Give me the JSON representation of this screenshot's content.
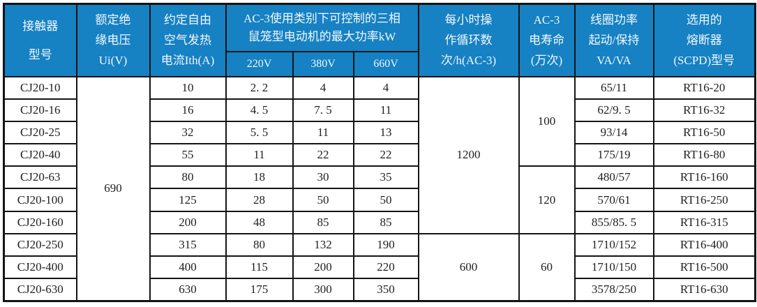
{
  "colors": {
    "header_bg": "#1681c3",
    "header_text": "#f2f8fd",
    "grid": "#141414",
    "cell_text": "#1f1f1f"
  },
  "table": {
    "header": {
      "model": {
        "lines": [
          "接触器",
          "型号"
        ]
      },
      "ui": {
        "lines": [
          "额定绝",
          "缘电压",
          "Ui(V)"
        ]
      },
      "ith": {
        "lines": [
          "约定自由",
          "空气发热",
          "电流Ith(A)"
        ]
      },
      "power_group": {
        "lines": [
          "AC-3使用类别下可控制的三相",
          "鼠笼型电动机的最大功率kW"
        ],
        "subcols": [
          "220V",
          "380V",
          "660V"
        ]
      },
      "cycles": {
        "lines": [
          "每小时操",
          "作循环数",
          "次/h(AC-3)"
        ]
      },
      "life": {
        "lines": [
          "AC-3",
          "电寿命",
          "(万次)"
        ]
      },
      "coil": {
        "lines": [
          "线圈功率",
          "起动/保持",
          "VA/VA"
        ]
      },
      "fuse": {
        "lines": [
          "选用的",
          "熔断器",
          "(SCPD)型号"
        ]
      }
    },
    "rows": [
      {
        "model": "CJ20-10",
        "ith": "10",
        "p220": "2. 2",
        "p380": "4",
        "p660": "4",
        "coil": "65/11",
        "fuse": "RT16-20"
      },
      {
        "model": "CJ20-16",
        "ith": "16",
        "p220": "4. 5",
        "p380": "7. 5",
        "p660": "11",
        "coil": "62/9. 5",
        "fuse": "RT16-32"
      },
      {
        "model": "CJ20-25",
        "ith": "32",
        "p220": "5. 5",
        "p380": "11",
        "p660": "13",
        "coil": "93/14",
        "fuse": "RT16-50"
      },
      {
        "model": "CJ20-40",
        "ith": "55",
        "p220": "11",
        "p380": "22",
        "p660": "22",
        "coil": "175/19",
        "fuse": "RT16-80"
      },
      {
        "model": "CJ20-63",
        "ith": "80",
        "p220": "18",
        "p380": "30",
        "p660": "35",
        "coil": "480/57",
        "fuse": "RT16-160"
      },
      {
        "model": "CJ20-100",
        "ith": "125",
        "p220": "28",
        "p380": "50",
        "p660": "50",
        "coil": "570/61",
        "fuse": "RT16-250"
      },
      {
        "model": "CJ20-160",
        "ith": "200",
        "p220": "48",
        "p380": "85",
        "p660": "85",
        "coil": "855/85. 5",
        "fuse": "RT16-315"
      },
      {
        "model": "CJ20-250",
        "ith": "315",
        "p220": "80",
        "p380": "132",
        "p660": "190",
        "coil": "1710/152",
        "fuse": "RT16-400"
      },
      {
        "model": "CJ20-400",
        "ith": "400",
        "p220": "115",
        "p380": "200",
        "p660": "220",
        "coil": "1710/150",
        "fuse": "RT16-500"
      },
      {
        "model": "CJ20-630",
        "ith": "630",
        "p220": "175",
        "p380": "300",
        "p660": "350",
        "coil": "3578/250",
        "fuse": "RT16-630"
      }
    ],
    "merged": {
      "ui": {
        "value": "690",
        "start": 0,
        "span": 10
      },
      "cycles": [
        {
          "value": "1200",
          "start": 0,
          "span": 7
        },
        {
          "value": "600",
          "start": 7,
          "span": 3
        }
      ],
      "life": [
        {
          "value": "100",
          "start": 0,
          "span": 4
        },
        {
          "value": "120",
          "start": 4,
          "span": 3
        },
        {
          "value": "60",
          "start": 7,
          "span": 3
        }
      ]
    }
  }
}
